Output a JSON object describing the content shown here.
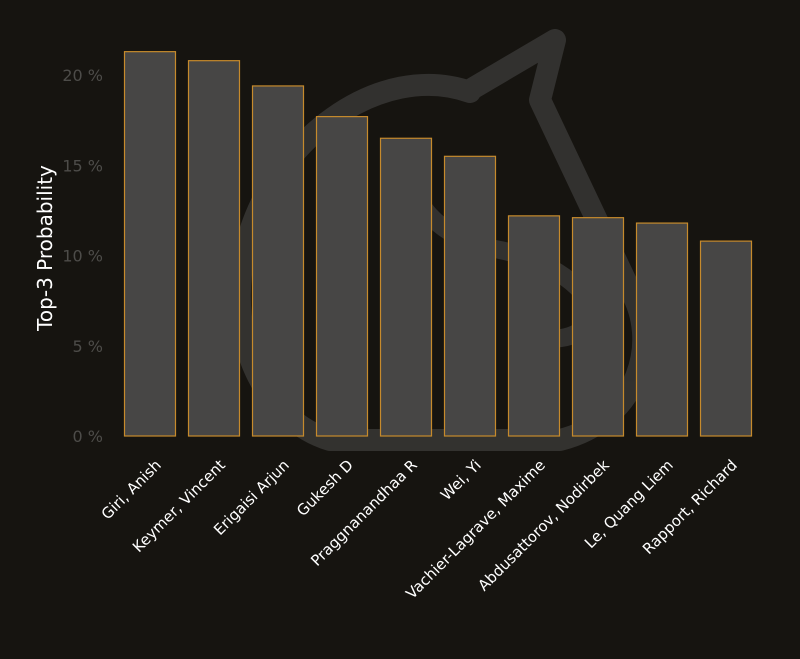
{
  "chart_data": {
    "type": "bar",
    "title": "",
    "xlabel": "",
    "ylabel": "Top-3 Probability",
    "categories": [
      "Giri, Anish",
      "Keymer, Vincent",
      "Erigaisi Arjun",
      "Gukesh D",
      "Praggnanandhaa R",
      "Wei, Yi",
      "Vachier-Lagrave, Maxime",
      "Abdusattorov, Nodirbek",
      "Le, Quang Liem",
      "Rapport, Richard"
    ],
    "values": [
      21.3,
      20.8,
      19.4,
      17.7,
      16.5,
      15.5,
      12.2,
      12.1,
      11.8,
      10.8
    ],
    "yticks": [
      0,
      5,
      10,
      15,
      20
    ],
    "ytick_labels": [
      "0 %",
      "5 %",
      "10 %",
      "15 %",
      "20 %"
    ],
    "ylim": [
      0,
      22.5
    ],
    "grid": false,
    "legend": "none",
    "colors": {
      "background": "#161410",
      "bar_fill": "#474645",
      "bar_stroke": "#c68a2c",
      "tick_text": "#4d4c49",
      "label_text": "#ffffff",
      "watermark": "#3a3937"
    }
  },
  "watermark": {
    "icon": "chess-knight-logo"
  }
}
